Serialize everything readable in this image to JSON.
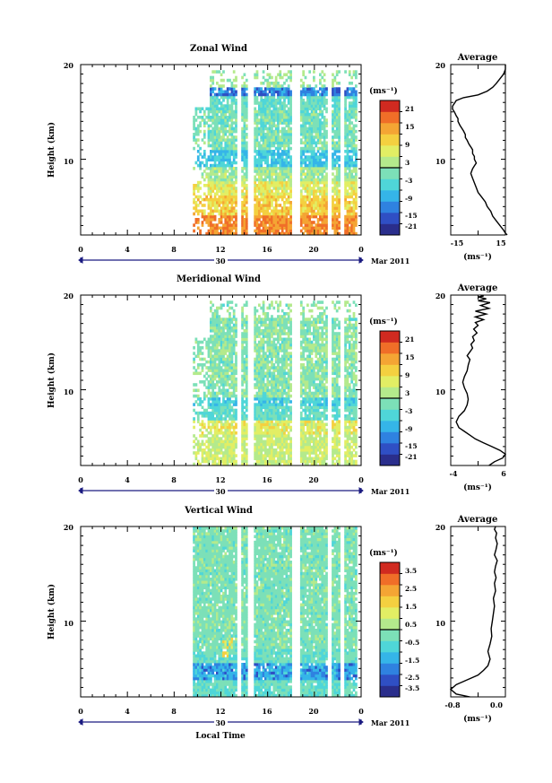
{
  "chart_data": [
    {
      "type": "heatmap",
      "title": "Zonal Wind",
      "ylabel": "Height (km)",
      "xlabel": "",
      "ylim": [
        2,
        20
      ],
      "y_ticks": [
        "20",
        "10"
      ],
      "xlim": [
        0,
        24
      ],
      "x_ticks": [
        "0",
        "4",
        "8",
        "12",
        "16",
        "20",
        "0"
      ],
      "date_day": "30",
      "date_label": "Mar 2011",
      "colorbar": {
        "unit": "(ms⁻¹)",
        "labels": [
          "21",
          "15",
          "9",
          "3",
          "-3",
          "-9",
          "-15",
          "-21"
        ],
        "range": [
          -24,
          24
        ]
      },
      "field_hint": "zonal",
      "avg_profile": {
        "title": "Average",
        "xlabel": "(ms⁻¹)",
        "x_ticks": [
          "-15",
          "15"
        ],
        "xlim": [
          -15,
          15
        ],
        "y_ticks": [
          "20",
          "10"
        ],
        "x": [
          16,
          15,
          14,
          12,
          10,
          8,
          7,
          5,
          4,
          2,
          0,
          -1,
          -2,
          -3,
          -4,
          -3,
          -2,
          -1,
          -2,
          -2,
          -3,
          -3,
          -4,
          -5,
          -6,
          -7,
          -7,
          -8,
          -9,
          -10,
          -11,
          -11,
          -12,
          -13,
          -14,
          -14,
          -13,
          -12,
          -8,
          0,
          5,
          8,
          10,
          12,
          14,
          15,
          15
        ],
        "y": [
          2.0,
          2.2,
          2.5,
          3.0,
          3.5,
          4.0,
          4.5,
          5.0,
          5.5,
          6.0,
          6.5,
          7.0,
          7.5,
          8.0,
          8.5,
          9.0,
          9.3,
          9.6,
          10.0,
          10.3,
          10.6,
          11.0,
          11.3,
          11.6,
          12.0,
          12.3,
          12.6,
          13.0,
          13.3,
          13.6,
          14.0,
          14.3,
          14.6,
          15.0,
          15.3,
          15.6,
          15.9,
          16.2,
          16.5,
          16.8,
          17.2,
          17.6,
          18.0,
          18.5,
          19.0,
          19.5,
          20.0
        ]
      }
    },
    {
      "type": "heatmap",
      "title": "Meridional Wind",
      "ylabel": "Height (km)",
      "xlabel": "",
      "ylim": [
        2,
        20
      ],
      "y_ticks": [
        "20",
        "10"
      ],
      "xlim": [
        0,
        24
      ],
      "x_ticks": [
        "0",
        "4",
        "8",
        "12",
        "16",
        "20",
        "0"
      ],
      "date_day": "30",
      "date_label": "Mar 2011",
      "colorbar": {
        "unit": "(ms⁻¹)",
        "labels": [
          "21",
          "15",
          "9",
          "3",
          "-3",
          "-9",
          "-15",
          "-21"
        ],
        "range": [
          -24,
          24
        ]
      },
      "field_hint": "meridional",
      "avg_profile": {
        "title": "Average",
        "xlabel": "(ms⁻¹)",
        "x_ticks": [
          "-4",
          "6"
        ],
        "xlim": [
          -4,
          6
        ],
        "y_ticks": [
          "20",
          "10"
        ],
        "x": [
          3.0,
          4.0,
          5.5,
          6.0,
          5.0,
          3.5,
          2.0,
          0.5,
          -0.5,
          -1.5,
          -2.5,
          -3.0,
          -2.5,
          -1.5,
          -1.0,
          -0.8,
          -1.0,
          -1.5,
          -1.8,
          -1.5,
          -1.0,
          -0.8,
          -0.5,
          -1.0,
          -0.5,
          0.0,
          -0.3,
          0.3,
          0.0,
          0.8,
          0.2,
          1.0,
          0.5,
          2.0,
          0.5,
          2.5,
          0.5,
          3.0,
          1.5,
          3.2,
          1.0,
          2.5,
          1.0,
          2.0,
          1.5
        ],
        "y": [
          2.0,
          2.4,
          2.8,
          3.2,
          3.6,
          4.0,
          4.4,
          4.8,
          5.2,
          5.6,
          6.0,
          6.6,
          7.2,
          7.8,
          8.4,
          9.0,
          9.6,
          10.2,
          10.8,
          11.4,
          12.0,
          12.6,
          13.2,
          13.6,
          14.0,
          14.4,
          14.8,
          15.2,
          15.6,
          16.0,
          16.4,
          16.8,
          17.1,
          17.4,
          17.7,
          18.0,
          18.3,
          18.6,
          18.9,
          19.2,
          19.4,
          19.6,
          19.8,
          19.9,
          20.0
        ]
      }
    },
    {
      "type": "heatmap",
      "title": "Vertical Wind",
      "ylabel": "Height (km)",
      "xlabel": "Local Time",
      "ylim": [
        2,
        20
      ],
      "y_ticks": [
        "20",
        "10"
      ],
      "xlim": [
        0,
        24
      ],
      "x_ticks": [
        "0",
        "4",
        "8",
        "12",
        "16",
        "20",
        "0"
      ],
      "date_day": "30",
      "date_label": "Mar 2011",
      "colorbar": {
        "unit": "(ms⁻¹)",
        "labels": [
          "3.5",
          "2.5",
          "1.5",
          "0.5",
          "-0.5",
          "-1.5",
          "-2.5",
          "-3.5"
        ],
        "range": [
          -4,
          4
        ]
      },
      "field_hint": "vertical",
      "avg_profile": {
        "title": "Average",
        "xlabel": "(ms⁻¹)",
        "x_ticks": [
          "-0.8",
          "0.0"
        ],
        "xlim": [
          -0.8,
          0.2
        ],
        "y_ticks": [
          "20",
          "10"
        ],
        "x": [
          -0.45,
          -0.7,
          -0.8,
          -0.7,
          -0.5,
          -0.3,
          -0.2,
          -0.12,
          -0.08,
          -0.12,
          -0.08,
          -0.05,
          -0.06,
          -0.04,
          -0.02,
          0.0,
          -0.02,
          0.02,
          0.0,
          0.03,
          0.0,
          0.02,
          0.05,
          0.0,
          0.03,
          0.05,
          0.02,
          0.04,
          0.0,
          0.02
        ],
        "y": [
          2.0,
          2.3,
          2.8,
          3.3,
          3.8,
          4.3,
          4.8,
          5.3,
          6.0,
          6.8,
          7.6,
          8.4,
          9.2,
          10.0,
          10.8,
          11.6,
          12.4,
          13.2,
          14.0,
          14.6,
          15.2,
          15.8,
          16.4,
          17.0,
          17.6,
          18.2,
          18.8,
          19.3,
          19.7,
          20.0
        ]
      }
    }
  ]
}
